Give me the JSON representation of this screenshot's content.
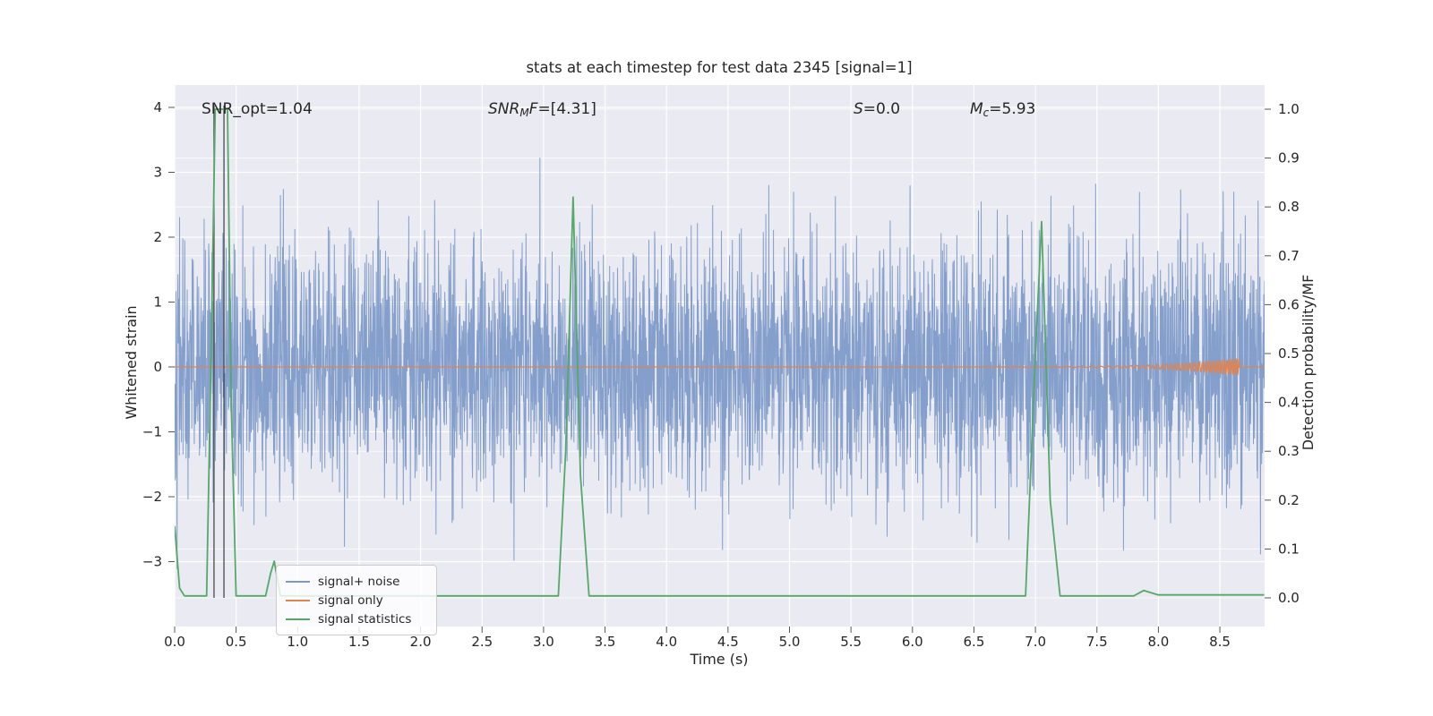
{
  "chart_data": {
    "type": "line",
    "title": "stats at each timestep for test data 2345 [signal=1]",
    "xlabel": "Time (s)",
    "ylabel_left": "Whitened strain",
    "ylabel_right": "Detection probability/MF",
    "xlim": [
      0,
      8.86
    ],
    "ylim_left": [
      -4.03,
      4.35
    ],
    "ylim_right": [
      -0.06,
      1.05
    ],
    "grid": true,
    "legend_position": "lower-left",
    "x_ticks": [
      0.0,
      0.5,
      1.0,
      1.5,
      2.0,
      2.5,
      3.0,
      3.5,
      4.0,
      4.5,
      5.0,
      5.5,
      6.0,
      6.5,
      7.0,
      7.5,
      8.0,
      8.5
    ],
    "x_tick_labels": [
      "0.0",
      "0.5",
      "1.0",
      "1.5",
      "2.0",
      "2.5",
      "3.0",
      "3.5",
      "4.0",
      "4.5",
      "5.0",
      "5.5",
      "6.0",
      "6.5",
      "7.0",
      "7.5",
      "8.0",
      "8.5"
    ],
    "y_left_ticks": [
      -3,
      -2,
      -1,
      0,
      1,
      2,
      3,
      4
    ],
    "y_left_tick_labels": [
      "−3",
      "−2",
      "−1",
      "0",
      "1",
      "2",
      "3",
      "4"
    ],
    "y_right_ticks": [
      0.0,
      0.1,
      0.2,
      0.3,
      0.4,
      0.5,
      0.6,
      0.7,
      0.8,
      0.9,
      1.0
    ],
    "y_right_tick_labels": [
      "0.0",
      "0.1",
      "0.2",
      "0.3",
      "0.4",
      "0.5",
      "0.6",
      "0.7",
      "0.8",
      "0.9",
      "1.0"
    ],
    "series": [
      {
        "name": "signal+ noise",
        "kind": "gaussian-noise",
        "color": "#7B98C8",
        "n": 4000,
        "std": 0.95,
        "mean": 0,
        "seed": 42,
        "axis": "left"
      },
      {
        "name": "signal only",
        "kind": "chirp",
        "color": "#DD8452",
        "flat_value": 0,
        "chirp_start": 6.8,
        "chirp_end": 8.66,
        "max_amplitude": 0.12,
        "f_start": 6,
        "f_end": 55,
        "axis": "left"
      },
      {
        "name": "signal statistics",
        "kind": "points",
        "color": "#55A868",
        "axis": "right",
        "points": [
          [
            0.0,
            0.147
          ],
          [
            0.04,
            0.02
          ],
          [
            0.08,
            0.004
          ],
          [
            0.26,
            0.004
          ],
          [
            0.3,
            0.55
          ],
          [
            0.33,
            1.0
          ],
          [
            0.43,
            1.0
          ],
          [
            0.46,
            0.4
          ],
          [
            0.5,
            0.004
          ],
          [
            0.74,
            0.004
          ],
          [
            0.78,
            0.05
          ],
          [
            0.81,
            0.075
          ],
          [
            0.86,
            0.004
          ],
          [
            3.12,
            0.004
          ],
          [
            3.18,
            0.3
          ],
          [
            3.24,
            0.82
          ],
          [
            3.3,
            0.25
          ],
          [
            3.37,
            0.004
          ],
          [
            6.92,
            0.004
          ],
          [
            7.0,
            0.5
          ],
          [
            7.05,
            0.77
          ],
          [
            7.12,
            0.2
          ],
          [
            7.2,
            0.004
          ],
          [
            7.8,
            0.004
          ],
          [
            7.88,
            0.015
          ],
          [
            8.0,
            0.006
          ],
          [
            8.86,
            0.006
          ]
        ]
      }
    ],
    "event_lines": {
      "x": [
        0.32,
        0.401
      ],
      "color": "#3d3d3d"
    }
  },
  "annotations": {
    "snr_opt": "SNR_opt=1.04",
    "snr_mf": {
      "main": "SNR",
      "sub": "M",
      "tail": "F",
      "value": "=[4.31]"
    },
    "s_stat": {
      "main": "S",
      "value": "=0.0"
    },
    "m_c": {
      "main": "M",
      "sub": "c",
      "value": "=5.93"
    }
  },
  "legend": {
    "items": [
      {
        "label": "signal+ noise",
        "color": "#7B98C8"
      },
      {
        "label": "signal only",
        "color": "#DD8452"
      },
      {
        "label": "signal statistics",
        "color": "#55A868"
      }
    ]
  },
  "colors": {
    "plot_background": "#EAEAF2",
    "grid": "#FFFFFF",
    "text": "#262626"
  }
}
